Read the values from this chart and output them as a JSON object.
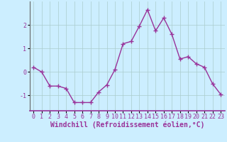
{
  "x": [
    0,
    1,
    2,
    3,
    4,
    5,
    6,
    7,
    8,
    9,
    10,
    11,
    12,
    13,
    14,
    15,
    16,
    17,
    18,
    19,
    20,
    21,
    22,
    23
  ],
  "y": [
    0.2,
    0.0,
    -0.6,
    -0.6,
    -0.7,
    -1.3,
    -1.3,
    -1.3,
    -0.85,
    -0.55,
    0.1,
    1.2,
    1.3,
    1.95,
    2.65,
    1.75,
    2.3,
    1.6,
    0.55,
    0.65,
    0.35,
    0.2,
    -0.5,
    -0.95
  ],
  "line_color": "#993399",
  "marker": "+",
  "marker_size": 4,
  "marker_linewidth": 1.0,
  "line_width": 1.0,
  "bg_color": "#cceeff",
  "grid_color": "#aacccc",
  "xlabel": "Windchill (Refroidissement éolien,°C)",
  "xlabel_fontsize": 7,
  "tick_fontsize": 6,
  "ytick_labels": [
    "-1",
    "0",
    "1",
    "2"
  ],
  "ytick_vals": [
    -1,
    0,
    1,
    2
  ],
  "xlim": [
    -0.5,
    23.5
  ],
  "ylim": [
    -1.65,
    3.0
  ]
}
